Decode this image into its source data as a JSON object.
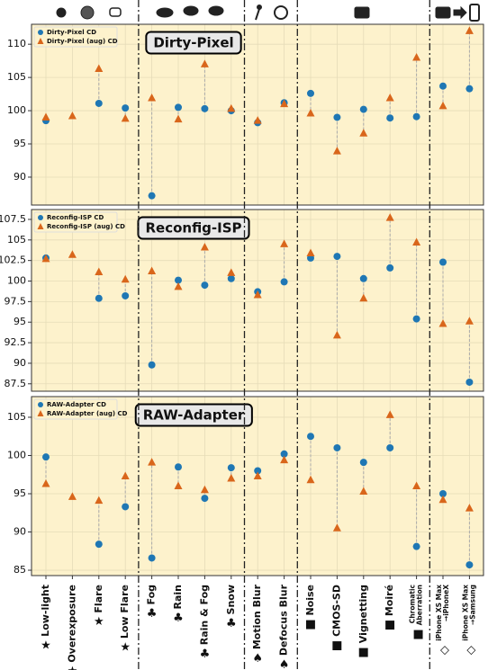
{
  "chart_data": [
    {
      "type": "scatter",
      "title": "Dirty-Pixel",
      "ylim": [
        85.8,
        113
      ],
      "yticks": [
        90,
        95,
        100,
        105,
        110
      ],
      "grid": true,
      "legend": "upper left",
      "series": [
        {
          "name": "Dirty-Pixel CD",
          "marker": "circle",
          "color": "#1f77b4",
          "values": [
            98.5,
            null,
            101.1,
            100.4,
            87.2,
            100.5,
            100.3,
            100.0,
            98.2,
            101.2,
            102.6,
            99.0,
            100.2,
            98.9,
            99.1,
            103.7,
            103.3
          ]
        },
        {
          "name": "Dirty-Pixel (aug) CD",
          "marker": "triangle",
          "color": "#d9661b",
          "values": [
            99.0,
            99.2,
            106.3,
            98.8,
            101.9,
            98.7,
            107.0,
            100.3,
            98.5,
            101.0,
            99.6,
            93.9,
            96.6,
            101.9,
            108.0,
            100.7,
            112.0
          ]
        }
      ]
    },
    {
      "type": "scatter",
      "title": "Reconfig-ISP",
      "ylim": [
        86.6,
        108.7
      ],
      "yticks": [
        87.5,
        90,
        92.5,
        95,
        97.5,
        100,
        102.5,
        105,
        107.5
      ],
      "grid": true,
      "legend": "upper left",
      "series": [
        {
          "name": "Reconfig-ISP CD",
          "marker": "circle",
          "color": "#1f77b4",
          "values": [
            102.8,
            null,
            97.9,
            98.2,
            89.8,
            100.1,
            99.5,
            100.3,
            98.7,
            99.9,
            102.8,
            103.0,
            100.3,
            101.6,
            95.4,
            102.3,
            87.7
          ]
        },
        {
          "name": "Reconfig-ISP (aug) CD",
          "marker": "triangle",
          "color": "#d9661b",
          "values": [
            102.7,
            103.2,
            101.1,
            100.2,
            101.2,
            99.3,
            104.1,
            101.0,
            98.3,
            104.5,
            103.4,
            93.4,
            97.9,
            107.7,
            104.7,
            94.8,
            95.1
          ]
        }
      ]
    },
    {
      "type": "scatter",
      "title": "RAW-Adapter",
      "ylim": [
        84.3,
        107.7
      ],
      "yticks": [
        85,
        90,
        95,
        100,
        105
      ],
      "grid": true,
      "legend": "upper left",
      "categories": [
        "Low-light",
        "Overexposure",
        "Flare",
        "Low Flare",
        "Fog",
        "Rain",
        "Rain & Fog",
        "Snow",
        "Motion Blur",
        "Defocus Blur",
        "Noise",
        "CMOS-SD",
        "Vignetting",
        "Moiré",
        "Chromatic\nAberration",
        "iPhone XS Max\n→iPhoneX",
        "iPhone XS Max\n→Samsung"
      ],
      "category_symbols": [
        "★",
        "★",
        "★",
        "★",
        "♣",
        "♣",
        "♣",
        "♣",
        "♠",
        "♠",
        "■",
        "■",
        "■",
        "■",
        "■",
        "◇",
        "◇"
      ],
      "series": [
        {
          "name": "RAW-Adapter CD",
          "marker": "circle",
          "color": "#1f77b4",
          "values": [
            99.8,
            null,
            88.4,
            93.3,
            86.6,
            98.5,
            94.4,
            98.4,
            98.0,
            100.2,
            102.5,
            101.0,
            99.1,
            101.0,
            88.1,
            95.0,
            85.7
          ]
        },
        {
          "name": "RAW-Adapter (aug) CD",
          "marker": "triangle",
          "color": "#d9661b",
          "values": [
            96.3,
            94.6,
            94.1,
            97.3,
            99.1,
            96.0,
            95.5,
            97.0,
            97.3,
            99.4,
            96.8,
            90.5,
            95.3,
            105.3,
            96.0,
            94.2,
            93.1
          ]
        }
      ]
    }
  ]
}
